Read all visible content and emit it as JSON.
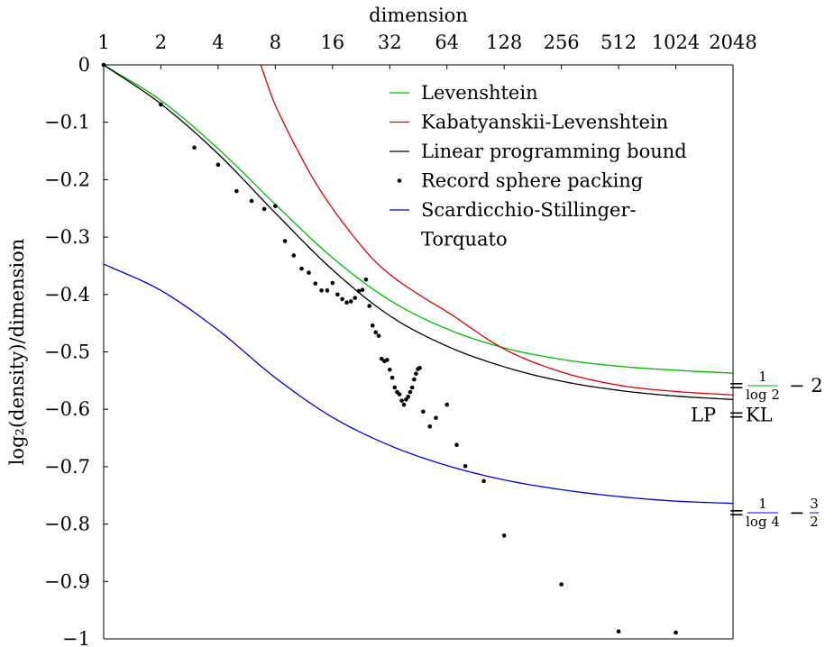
{
  "chart_data": {
    "type": "scatter",
    "xlabel": "dimension",
    "ylabel": "log₂(density)/dimension",
    "x_scale": "log2",
    "xlim": [
      1,
      2048
    ],
    "ylim": [
      -1,
      0
    ],
    "x_ticks": [
      "1",
      "2",
      "4",
      "8",
      "16",
      "32",
      "64",
      "128",
      "256",
      "512",
      "1024",
      "2048"
    ],
    "y_ticks": [
      "0",
      "−0.1",
      "−0.2",
      "−0.3",
      "−0.4",
      "−0.5",
      "−0.6",
      "−0.7",
      "−0.8",
      "−0.9",
      "−1"
    ],
    "legend_position": "top-right",
    "grid": false,
    "series": [
      {
        "name": "Levenshtein",
        "style": "line",
        "color": "#00bb00",
        "x": [
          1,
          2,
          4,
          8,
          16,
          32,
          64,
          128,
          256,
          512,
          1024,
          2048
        ],
        "y": [
          0,
          -0.062,
          -0.146,
          -0.243,
          -0.336,
          -0.41,
          -0.46,
          -0.493,
          -0.513,
          -0.525,
          -0.532,
          -0.537
        ]
      },
      {
        "name": "Kabatyanskii-Levenshtein",
        "style": "line",
        "color": "#dd0000",
        "x": [
          6.7,
          8,
          12,
          16,
          24,
          32,
          48,
          64,
          128,
          256,
          512,
          1024,
          2048
        ],
        "y": [
          0,
          -0.07,
          -0.185,
          -0.25,
          -0.325,
          -0.365,
          -0.405,
          -0.43,
          -0.495,
          -0.535,
          -0.558,
          -0.569,
          -0.575
        ]
      },
      {
        "name": "Linear programming bound",
        "style": "line",
        "color": "#000000",
        "x": [
          1,
          2,
          4,
          8,
          16,
          32,
          64,
          128,
          256,
          512,
          1024,
          2048
        ],
        "y": [
          0,
          -0.068,
          -0.155,
          -0.258,
          -0.357,
          -0.437,
          -0.49,
          -0.526,
          -0.551,
          -0.567,
          -0.577,
          -0.583
        ]
      },
      {
        "name": "Record sphere packing",
        "style": "points",
        "color": "#000000",
        "x": [
          1,
          2,
          3,
          4,
          5,
          6,
          7,
          8,
          9,
          10,
          11,
          12,
          13,
          14,
          15,
          16,
          17,
          18,
          19,
          20,
          21,
          22,
          23,
          24,
          25,
          26,
          27,
          28,
          29,
          30,
          31,
          32,
          33,
          34,
          35,
          36,
          37,
          38,
          39,
          40,
          41,
          42,
          43,
          44,
          45,
          46,
          48,
          52,
          56,
          64,
          72,
          80,
          100,
          128,
          256,
          512,
          1024
        ],
        "y": [
          0,
          -0.069,
          -0.144,
          -0.174,
          -0.22,
          -0.237,
          -0.251,
          -0.246,
          -0.307,
          -0.332,
          -0.355,
          -0.362,
          -0.381,
          -0.393,
          -0.393,
          -0.38,
          -0.4,
          -0.408,
          -0.414,
          -0.412,
          -0.406,
          -0.394,
          -0.392,
          -0.374,
          -0.42,
          -0.454,
          -0.466,
          -0.472,
          -0.512,
          -0.516,
          -0.514,
          -0.531,
          -0.545,
          -0.562,
          -0.57,
          -0.574,
          -0.585,
          -0.592,
          -0.583,
          -0.578,
          -0.57,
          -0.562,
          -0.548,
          -0.538,
          -0.53,
          -0.528,
          -0.604,
          -0.63,
          -0.615,
          -0.592,
          -0.662,
          -0.699,
          -0.725,
          -0.82,
          -0.905,
          -0.987,
          -0.989
        ]
      },
      {
        "name": "Scardicchio-Stillinger-Torquato",
        "style": "line",
        "color": "#0000dd",
        "x": [
          1,
          2,
          4,
          8,
          16,
          32,
          64,
          128,
          256,
          512,
          1024,
          2048
        ],
        "y": [
          -0.347,
          -0.393,
          -0.462,
          -0.545,
          -0.614,
          -0.663,
          -0.698,
          -0.723,
          -0.74,
          -0.752,
          -0.76,
          -0.764
        ]
      }
    ],
    "legend_lines": [
      [
        "Levenshtein"
      ],
      [
        "Kabatyanskii-Levenshtein"
      ],
      [
        "Linear programming bound"
      ],
      [
        "Record sphere packing"
      ],
      [
        "Scardicchio-Stillinger-",
        "Torquato"
      ]
    ],
    "annotations": [
      {
        "label": "levenshtein-asymptote",
        "y": -0.5573,
        "color": "#00bb00",
        "frac_num": "1",
        "frac_den": "log 2",
        "suffix": "− 2"
      },
      {
        "label": "lp-kl-asymptote",
        "y": -0.599,
        "text_left": "LP",
        "text_left_color": "#000000",
        "sep": "=",
        "text_right": "KL",
        "text_right_color": "#dd0000"
      },
      {
        "label": "sst-asymptote",
        "y": -0.7787,
        "color": "#0000dd",
        "frac_num": "1",
        "frac_den": "log 4",
        "suffix": "−",
        "suffix_num": "3",
        "suffix_den": "2"
      }
    ]
  }
}
